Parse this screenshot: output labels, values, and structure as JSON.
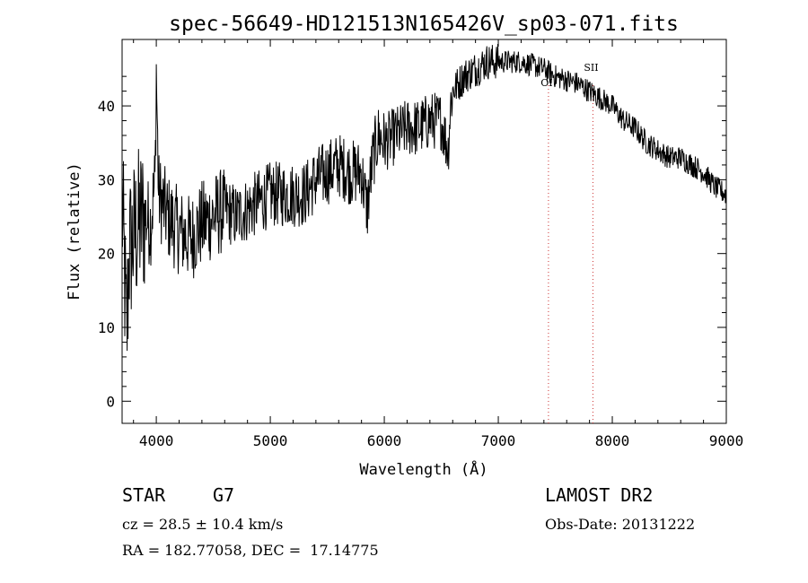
{
  "chart_data": {
    "type": "line",
    "title": "spec-56649-HD121513N165426V_sp03-071.fits",
    "xlabel": "Wavelength (Å)",
    "ylabel": "Flux (relative)",
    "xlim": [
      3700,
      9000
    ],
    "ylim": [
      -3,
      49
    ],
    "x_ticks": [
      4000,
      5000,
      6000,
      7000,
      8000,
      9000
    ],
    "y_ticks": [
      0,
      10,
      20,
      30,
      40
    ],
    "grid": false,
    "line_color": "#000000",
    "marker_color": "#cc3333",
    "markers": [
      {
        "label": "OI",
        "x": 7440
      },
      {
        "label": "SII",
        "x": 7830
      }
    ],
    "series": [
      {
        "x": [
          3700,
          3720,
          3740,
          3760,
          3800,
          3850,
          3900,
          3950,
          3990,
          4000,
          4020,
          4100,
          4200,
          4300,
          4400,
          4500,
          4600,
          4700,
          4800,
          4900,
          5000,
          5100,
          5200,
          5300,
          5400,
          5500,
          5600,
          5700,
          5800,
          5850,
          5900,
          5950,
          6000,
          6100,
          6200,
          6300,
          6400,
          6500,
          6560,
          6580,
          6600,
          6700,
          6800,
          6900,
          7000,
          7100,
          7200,
          7300,
          7400,
          7500,
          7600,
          7700,
          7800,
          7900,
          8000,
          8100,
          8200,
          8300,
          8400,
          8500,
          8600,
          8700,
          8800,
          8900,
          9000
        ],
        "y": [
          27,
          18,
          8,
          20,
          22,
          24,
          25,
          24,
          30,
          45,
          28,
          25,
          23,
          22,
          24,
          25,
          26,
          25,
          26,
          27,
          28,
          28,
          28,
          28,
          30,
          31,
          32,
          31,
          31,
          26,
          33,
          36,
          35,
          36,
          37,
          37,
          38,
          38,
          34,
          40,
          42,
          44,
          45,
          46,
          46,
          46,
          46,
          45.5,
          45,
          44,
          43.5,
          43,
          42,
          41,
          40,
          38,
          37,
          35,
          34,
          33,
          33,
          32,
          31,
          29,
          28
        ]
      }
    ]
  },
  "footer": {
    "object_class": "STAR",
    "subclass": "G7",
    "redshift": "cz = 28.5 ± 10.4 km/s",
    "coords": "RA = 182.77058, DEC =  17.14775",
    "survey": "LAMOST DR2",
    "obs_date": "Obs-Date: 20131222"
  }
}
